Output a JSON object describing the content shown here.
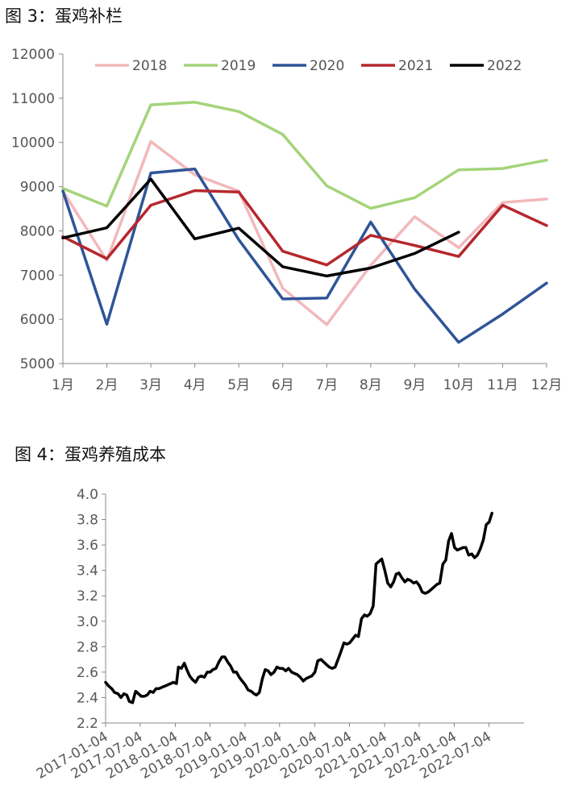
{
  "chart_data": [
    {
      "type": "line",
      "title": "图 3：蛋鸡补栏",
      "categories": [
        "1月",
        "2月",
        "3月",
        "4月",
        "5月",
        "6月",
        "7月",
        "8月",
        "9月",
        "10月",
        "11月",
        "12月"
      ],
      "ylim": [
        5000,
        12000
      ],
      "yticks": [
        5000,
        6000,
        7000,
        8000,
        9000,
        10000,
        11000,
        12000
      ],
      "grid": false,
      "legend": "top",
      "series": [
        {
          "name": "2018",
          "color": "#F2B8BC",
          "values": [
            8900,
            7330,
            10020,
            9270,
            8900,
            6700,
            5880,
            7220,
            8320,
            7620,
            8640,
            8720
          ]
        },
        {
          "name": "2019",
          "color": "#A4D47A",
          "values": [
            8960,
            8560,
            10850,
            10910,
            10700,
            10180,
            9020,
            8510,
            8750,
            9380,
            9410,
            9600
          ]
        },
        {
          "name": "2020",
          "color": "#2F5597",
          "values": [
            8900,
            5890,
            9310,
            9400,
            7800,
            6460,
            6480,
            8200,
            6680,
            5480,
            6120,
            6820
          ]
        },
        {
          "name": "2021",
          "color": "#B5282E",
          "values": [
            7870,
            7370,
            8580,
            8910,
            8880,
            7540,
            7230,
            7900,
            7670,
            7420,
            8580,
            8120
          ]
        },
        {
          "name": "2022",
          "color": "#000000",
          "values": [
            7840,
            8070,
            9170,
            7820,
            8060,
            7190,
            6980,
            7160,
            7490,
            7970,
            null,
            null
          ]
        }
      ]
    },
    {
      "type": "line",
      "title": "图 4：蛋鸡养殖成本",
      "ylim": [
        2.2,
        4.0
      ],
      "yticks": [
        2.2,
        2.4,
        2.6,
        2.8,
        3.0,
        3.2,
        3.4,
        3.6,
        3.8,
        4.0
      ],
      "xlim": [
        "2017-01-04",
        "2023-01-04"
      ],
      "xticks": [
        "2017-01-04",
        "2017-07-04",
        "2018-01-04",
        "2018-07-04",
        "2019-01-04",
        "2019-07-04",
        "2020-01-04",
        "2020-07-04",
        "2021-01-04",
        "2021-07-04",
        "2022-01-04",
        "2022-07-04"
      ],
      "grid": false,
      "series": [
        {
          "color": "#000000",
          "points": [
            [
              "2017-01-04",
              2.52
            ],
            [
              "2017-01-20",
              2.49
            ],
            [
              "2017-02-05",
              2.47
            ],
            [
              "2017-02-20",
              2.44
            ],
            [
              "2017-03-10",
              2.43
            ],
            [
              "2017-03-25",
              2.4
            ],
            [
              "2017-04-10",
              2.43
            ],
            [
              "2017-04-25",
              2.42
            ],
            [
              "2017-05-08",
              2.37
            ],
            [
              "2017-05-25",
              2.36
            ],
            [
              "2017-06-10",
              2.45
            ],
            [
              "2017-06-25",
              2.43
            ],
            [
              "2017-07-10",
              2.41
            ],
            [
              "2017-07-25",
              2.41
            ],
            [
              "2017-08-10",
              2.42
            ],
            [
              "2017-08-25",
              2.45
            ],
            [
              "2017-09-10",
              2.44
            ],
            [
              "2017-09-25",
              2.47
            ],
            [
              "2017-10-10",
              2.47
            ],
            [
              "2017-10-25",
              2.48
            ],
            [
              "2017-11-10",
              2.49
            ],
            [
              "2017-11-25",
              2.5
            ],
            [
              "2017-12-10",
              2.51
            ],
            [
              "2017-12-25",
              2.52
            ],
            [
              "2018-01-10",
              2.51
            ],
            [
              "2018-01-20",
              2.64
            ],
            [
              "2018-02-05",
              2.63
            ],
            [
              "2018-02-20",
              2.67
            ],
            [
              "2018-03-05",
              2.62
            ],
            [
              "2018-03-20",
              2.57
            ],
            [
              "2018-04-05",
              2.54
            ],
            [
              "2018-04-20",
              2.52
            ],
            [
              "2018-05-05",
              2.56
            ],
            [
              "2018-05-20",
              2.57
            ],
            [
              "2018-06-05",
              2.56
            ],
            [
              "2018-06-20",
              2.6
            ],
            [
              "2018-07-05",
              2.6
            ],
            [
              "2018-07-20",
              2.62
            ],
            [
              "2018-08-05",
              2.63
            ],
            [
              "2018-08-20",
              2.68
            ],
            [
              "2018-09-05",
              2.72
            ],
            [
              "2018-09-20",
              2.72
            ],
            [
              "2018-10-05",
              2.68
            ],
            [
              "2018-10-20",
              2.65
            ],
            [
              "2018-11-05",
              2.6
            ],
            [
              "2018-11-20",
              2.6
            ],
            [
              "2018-12-05",
              2.56
            ],
            [
              "2018-12-20",
              2.53
            ],
            [
              "2019-01-05",
              2.5
            ],
            [
              "2019-01-20",
              2.46
            ],
            [
              "2019-02-05",
              2.45
            ],
            [
              "2019-02-20",
              2.43
            ],
            [
              "2019-03-05",
              2.42
            ],
            [
              "2019-03-20",
              2.44
            ],
            [
              "2019-04-05",
              2.55
            ],
            [
              "2019-04-20",
              2.62
            ],
            [
              "2019-05-05",
              2.61
            ],
            [
              "2019-05-20",
              2.58
            ],
            [
              "2019-06-05",
              2.6
            ],
            [
              "2019-06-20",
              2.64
            ],
            [
              "2019-07-05",
              2.63
            ],
            [
              "2019-07-20",
              2.63
            ],
            [
              "2019-08-05",
              2.61
            ],
            [
              "2019-08-20",
              2.63
            ],
            [
              "2019-09-05",
              2.6
            ],
            [
              "2019-09-20",
              2.59
            ],
            [
              "2019-10-05",
              2.58
            ],
            [
              "2019-10-20",
              2.56
            ],
            [
              "2019-11-05",
              2.53
            ],
            [
              "2019-11-20",
              2.55
            ],
            [
              "2019-12-05",
              2.56
            ],
            [
              "2019-12-20",
              2.57
            ],
            [
              "2020-01-05",
              2.6
            ],
            [
              "2020-01-20",
              2.69
            ],
            [
              "2020-02-05",
              2.7
            ],
            [
              "2020-02-20",
              2.68
            ],
            [
              "2020-03-05",
              2.66
            ],
            [
              "2020-03-20",
              2.64
            ],
            [
              "2020-04-05",
              2.63
            ],
            [
              "2020-04-20",
              2.64
            ],
            [
              "2020-05-05",
              2.7
            ],
            [
              "2020-05-20",
              2.76
            ],
            [
              "2020-06-05",
              2.83
            ],
            [
              "2020-06-20",
              2.82
            ],
            [
              "2020-07-05",
              2.83
            ],
            [
              "2020-07-20",
              2.86
            ],
            [
              "2020-08-05",
              2.89
            ],
            [
              "2020-08-20",
              2.88
            ],
            [
              "2020-09-05",
              3.02
            ],
            [
              "2020-09-20",
              3.05
            ],
            [
              "2020-10-05",
              3.04
            ],
            [
              "2020-10-20",
              3.06
            ],
            [
              "2020-11-05",
              3.12
            ],
            [
              "2020-11-20",
              3.45
            ],
            [
              "2020-12-05",
              3.47
            ],
            [
              "2020-12-20",
              3.49
            ],
            [
              "2021-01-05",
              3.4
            ],
            [
              "2021-01-20",
              3.3
            ],
            [
              "2021-02-05",
              3.27
            ],
            [
              "2021-02-20",
              3.31
            ],
            [
              "2021-03-05",
              3.37
            ],
            [
              "2021-03-20",
              3.38
            ],
            [
              "2021-04-05",
              3.34
            ],
            [
              "2021-04-20",
              3.31
            ],
            [
              "2021-05-05",
              3.33
            ],
            [
              "2021-05-20",
              3.32
            ],
            [
              "2021-06-05",
              3.3
            ],
            [
              "2021-06-20",
              3.31
            ],
            [
              "2021-07-05",
              3.28
            ],
            [
              "2021-07-20",
              3.23
            ],
            [
              "2021-08-05",
              3.22
            ],
            [
              "2021-08-20",
              3.23
            ],
            [
              "2021-09-05",
              3.25
            ],
            [
              "2021-09-20",
              3.27
            ],
            [
              "2021-10-05",
              3.29
            ],
            [
              "2021-10-20",
              3.3
            ],
            [
              "2021-11-05",
              3.45
            ],
            [
              "2021-11-20",
              3.48
            ],
            [
              "2021-12-05",
              3.63
            ],
            [
              "2021-12-20",
              3.69
            ],
            [
              "2022-01-05",
              3.58
            ],
            [
              "2022-01-20",
              3.56
            ],
            [
              "2022-02-05",
              3.57
            ],
            [
              "2022-02-20",
              3.58
            ],
            [
              "2022-03-05",
              3.58
            ],
            [
              "2022-03-20",
              3.52
            ],
            [
              "2022-04-05",
              3.53
            ],
            [
              "2022-04-20",
              3.5
            ],
            [
              "2022-05-05",
              3.52
            ],
            [
              "2022-05-20",
              3.57
            ],
            [
              "2022-06-05",
              3.64
            ],
            [
              "2022-06-20",
              3.76
            ],
            [
              "2022-07-05",
              3.78
            ],
            [
              "2022-07-20",
              3.85
            ]
          ]
        }
      ]
    }
  ]
}
